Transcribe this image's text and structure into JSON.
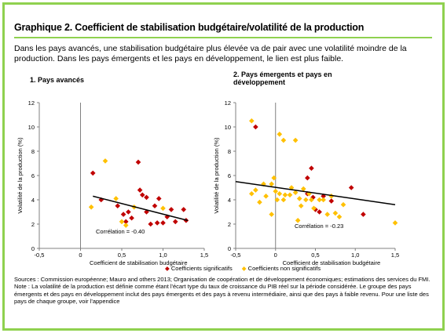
{
  "title": "Graphique 2. Coefficient de stabilisation budgétaire/volatilité de la production",
  "intro": "Dans les pays avancés, une stabilisation budgétaire plus élevée va de pair avec une volatilité moindre de la production. Dans les pays émergents et les pays en développement, le lien est plus faible.",
  "legend": {
    "significant": "Coefficients significatifs",
    "non_significant": "Coefficients non significatifs"
  },
  "sources": "Sources : Commission européenne; Mauro and others 2013; Organisation de coopération et de développement économiques; estimations des services du FMI.",
  "note": "Note : La volatilité de la production est définie comme étant l'écart type du taux de croissance du PIB réel sur la période considérée. Le groupe des pays émergents et des pays en développement inclut des pays émergents et des pays à revenu intermédiaire, ainsi que des pays à faible revenu. Pour une liste des pays de chaque groupe, voir l'appendice",
  "colors": {
    "significant": "#c00000",
    "non_significant": "#ffc000",
    "trend": "#000000",
    "axis": "#808080"
  },
  "chart_data": [
    {
      "type": "scatter",
      "title": "1. Pays avancés",
      "xlabel": "Coefficient de stabilisation budgétaire",
      "ylabel": "Volatilité de la production (%)",
      "xlim": [
        -0.5,
        1.5
      ],
      "ylim": [
        0,
        12
      ],
      "xticks": [
        "-0,5",
        "0",
        "0,5",
        "1,0",
        "1,5"
      ],
      "yticks": [
        "0",
        "2",
        "4",
        "6",
        "8",
        "10",
        "12"
      ],
      "annotation": "Corrélation = -0.40",
      "trend": {
        "x": [
          0.15,
          1.3
        ],
        "y": [
          4.3,
          2.3
        ]
      },
      "series": [
        {
          "name": "Coefficients significatifs",
          "marker": "diamond",
          "points": [
            [
              0.15,
              6.2
            ],
            [
              0.25,
              4.0
            ],
            [
              0.45,
              3.5
            ],
            [
              0.52,
              2.8
            ],
            [
              0.55,
              2.2
            ],
            [
              0.58,
              3.0
            ],
            [
              0.62,
              2.5
            ],
            [
              0.7,
              7.1
            ],
            [
              0.72,
              4.8
            ],
            [
              0.75,
              4.4
            ],
            [
              0.8,
              4.2
            ],
            [
              0.8,
              3.0
            ],
            [
              0.85,
              2.0
            ],
            [
              0.9,
              3.5
            ],
            [
              0.93,
              2.1
            ],
            [
              0.95,
              4.1
            ],
            [
              1.0,
              2.1
            ],
            [
              1.05,
              2.6
            ],
            [
              1.1,
              3.2
            ],
            [
              1.15,
              2.2
            ],
            [
              1.25,
              3.2
            ],
            [
              1.28,
              2.3
            ]
          ]
        },
        {
          "name": "Coefficients non significatifs",
          "marker": "diamond",
          "points": [
            [
              0.13,
              3.4
            ],
            [
              0.3,
              7.2
            ],
            [
              0.43,
              4.1
            ],
            [
              0.5,
              2.2
            ],
            [
              0.55,
              1.9
            ],
            [
              0.65,
              3.4
            ],
            [
              1.0,
              3.3
            ]
          ]
        }
      ]
    },
    {
      "type": "scatter",
      "title": "2. Pays émergents et pays en développement",
      "xlabel": "Coefficient de stabilisation budgétaire",
      "ylabel": "Volatilité de la production (%)",
      "xlim": [
        -0.5,
        1.5
      ],
      "ylim": [
        0,
        12
      ],
      "xticks": [
        "-0,5",
        "0",
        "0,5",
        "1,0",
        "1,5"
      ],
      "yticks": [
        "0",
        "2",
        "4",
        "6",
        "8",
        "10",
        "12"
      ],
      "annotation": "Corrélation = -0.23",
      "trend": {
        "x": [
          -0.5,
          1.5
        ],
        "y": [
          5.5,
          3.6
        ]
      },
      "series": [
        {
          "name": "Coefficients significatifs",
          "marker": "diamond",
          "points": [
            [
              -0.25,
              10.0
            ],
            [
              0.4,
              5.8
            ],
            [
              0.45,
              6.6
            ],
            [
              0.4,
              4.5
            ],
            [
              0.47,
              4.2
            ],
            [
              0.5,
              3.2
            ],
            [
              0.55,
              3.0
            ],
            [
              0.6,
              4.3
            ],
            [
              0.7,
              3.9
            ],
            [
              0.95,
              5.0
            ],
            [
              1.1,
              2.8
            ]
          ]
        },
        {
          "name": "Coefficients non significatifs",
          "marker": "diamond",
          "points": [
            [
              -0.3,
              10.5
            ],
            [
              -0.3,
              4.5
            ],
            [
              -0.25,
              4.8
            ],
            [
              -0.2,
              3.8
            ],
            [
              -0.15,
              5.3
            ],
            [
              -0.12,
              4.3
            ],
            [
              -0.05,
              5.3
            ],
            [
              -0.02,
              5.8
            ],
            [
              0.0,
              4.7
            ],
            [
              0.02,
              4.0
            ],
            [
              0.05,
              4.5
            ],
            [
              0.05,
              9.4
            ],
            [
              0.1,
              4.0
            ],
            [
              0.1,
              8.9
            ],
            [
              0.12,
              4.4
            ],
            [
              0.18,
              4.4
            ],
            [
              0.2,
              5.0
            ],
            [
              0.25,
              8.9
            ],
            [
              0.25,
              4.6
            ],
            [
              0.28,
              2.3
            ],
            [
              0.3,
              4.1
            ],
            [
              0.32,
              3.5
            ],
            [
              0.35,
              4.9
            ],
            [
              0.38,
              4.0
            ],
            [
              0.42,
              4.5
            ],
            [
              0.45,
              4.0
            ],
            [
              0.48,
              3.3
            ],
            [
              0.55,
              4.0
            ],
            [
              0.6,
              4.0
            ],
            [
              0.65,
              2.8
            ],
            [
              0.7,
              4.3
            ],
            [
              0.75,
              2.9
            ],
            [
              0.8,
              2.6
            ],
            [
              0.85,
              3.6
            ],
            [
              1.5,
              2.1
            ],
            [
              -0.05,
              2.8
            ]
          ]
        }
      ]
    }
  ]
}
